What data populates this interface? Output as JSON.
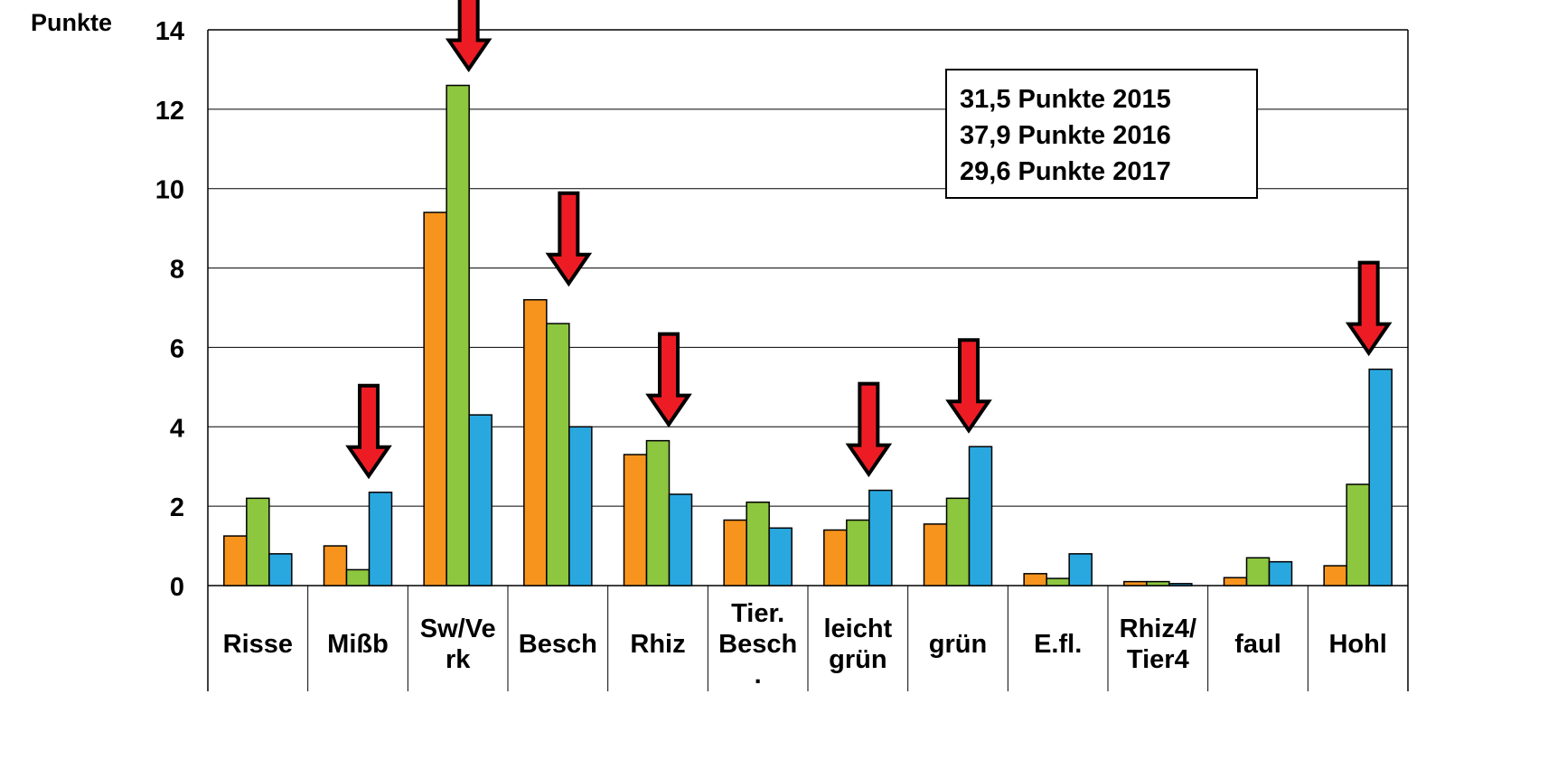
{
  "chart_data": {
    "type": "bar",
    "ylabel": "Punkte",
    "ylim": [
      0,
      14
    ],
    "y_ticks": [
      "0",
      "2",
      "4",
      "6",
      "8",
      "10",
      "12",
      "14"
    ],
    "categories": [
      [
        "Risse"
      ],
      [
        "Mißb"
      ],
      [
        "Sw/Ve",
        "rk"
      ],
      [
        "Besch"
      ],
      [
        "Rhiz"
      ],
      [
        "Tier.",
        "Besch",
        "."
      ],
      [
        "leicht",
        "grün"
      ],
      [
        "grün"
      ],
      [
        "E.fl."
      ],
      [
        "Rhiz4/",
        "Tier4"
      ],
      [
        "faul"
      ],
      [
        "Hohl"
      ]
    ],
    "series": [
      {
        "color": "#f7941d",
        "values": [
          1.25,
          1.0,
          9.4,
          7.2,
          3.3,
          1.65,
          1.4,
          1.55,
          0.3,
          0.1,
          0.2,
          0.5
        ]
      },
      {
        "color": "#8dc63f",
        "values": [
          2.2,
          0.4,
          12.6,
          6.6,
          3.65,
          2.1,
          1.65,
          2.2,
          0.18,
          0.1,
          0.7,
          2.55
        ]
      },
      {
        "color": "#29a8e0",
        "values": [
          0.8,
          2.35,
          4.3,
          4.0,
          2.3,
          1.45,
          2.4,
          3.5,
          0.8,
          0.05,
          0.6,
          5.45
        ]
      }
    ],
    "grid": true,
    "legend_position": "top-right",
    "annotation_lines": [
      "31,5 Punkte 2015",
      "37,9 Punkte 2016",
      "29,6 Punkte 2017"
    ],
    "arrow_color": "#ed1c24",
    "arrows_at_categories": [
      1,
      2,
      3,
      4,
      6,
      7,
      11
    ]
  }
}
